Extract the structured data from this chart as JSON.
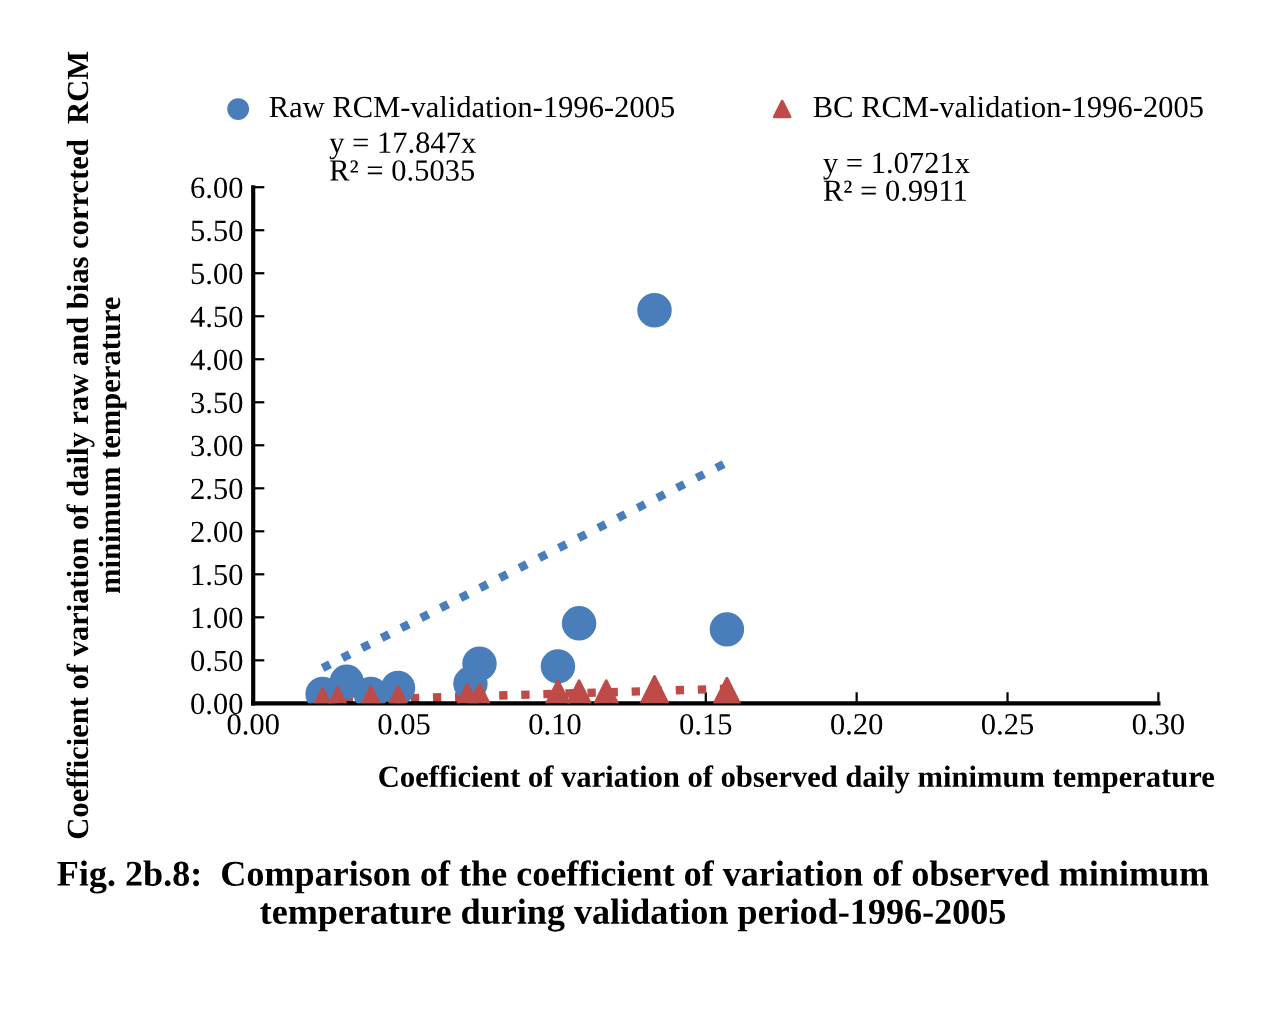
{
  "chart_data": {
    "type": "scatter",
    "title": "Fig. 2b.8:  Comparison of the coefficient of variation of observed minimum temperature during validation period-1996-2005",
    "xlabel": "Coefficient of variation of observed daily minimum temperature",
    "ylabel": "Coefficient of variation of daily raw and bias corrcted  RCM minimum temperature",
    "xlim": [
      0,
      0.3
    ],
    "xticks": [
      {
        "value": 0,
        "label": "0.00"
      },
      {
        "value": 0.05,
        "label": "0.05"
      },
      {
        "value": 0.1,
        "label": "0.10"
      },
      {
        "value": 0.15,
        "label": "0.15"
      },
      {
        "value": 0.2,
        "label": "0.20"
      },
      {
        "value": 0.25,
        "label": "0.25"
      },
      {
        "value": 0.3,
        "label": "0.30"
      }
    ],
    "ylim": [
      0,
      6
    ],
    "yticks": [
      {
        "value": 0,
        "label": "0.00"
      },
      {
        "value": 0.5,
        "label": "0.50"
      },
      {
        "value": 1,
        "label": "1.00"
      },
      {
        "value": 1.5,
        "label": "1.50"
      },
      {
        "value": 2,
        "label": "2.00"
      },
      {
        "value": 2.5,
        "label": "2.50"
      },
      {
        "value": 3,
        "label": "3.00"
      },
      {
        "value": 3.5,
        "label": "3.50"
      },
      {
        "value": 4,
        "label": "4.00"
      },
      {
        "value": 4.5,
        "label": "4.50"
      },
      {
        "value": 5,
        "label": "5.00"
      },
      {
        "value": 5.5,
        "label": "5.50"
      },
      {
        "value": 6,
        "label": "6.00"
      }
    ],
    "grid": false,
    "legend": "top",
    "annotations": [
      "y = 17.847x\nR² = 0.5035",
      "y = 1.0721x\nR² = 0.9911"
    ],
    "series": [
      {
        "name": "Raw RCM-validation-1996-2005",
        "color": "#4a7ebb",
        "marker": "circle",
        "x": [
          0.023,
          0.031,
          0.039,
          0.048,
          0.072,
          0.075,
          0.101,
          0.108,
          0.133,
          0.157
        ],
        "values": [
          0.11,
          0.25,
          0.11,
          0.18,
          0.23,
          0.46,
          0.43,
          0.93,
          4.57,
          0.86
        ]
      },
      {
        "name": "BC RCM-validation-1996-2005",
        "color": "#be4b48",
        "marker": "triangle",
        "x": [
          0.023,
          0.028,
          0.039,
          0.048,
          0.071,
          0.075,
          0.101,
          0.108,
          0.117,
          0.133,
          0.157
        ],
        "values": [
          0.02,
          0.03,
          0.04,
          0.04,
          0.07,
          0.07,
          0.11,
          0.11,
          0.11,
          0.16,
          0.14
        ]
      },
      {
        "type": "line",
        "color": "#4a7ebb",
        "line_style": "dotted",
        "x": [
          0.023,
          0.157
        ],
        "values": [
          0.41,
          2.8
        ]
      },
      {
        "type": "line",
        "color": "#be4b48",
        "line_style": "dotted",
        "x": [
          0.023,
          0.157
        ],
        "values": [
          0.03,
          0.17
        ]
      }
    ]
  }
}
